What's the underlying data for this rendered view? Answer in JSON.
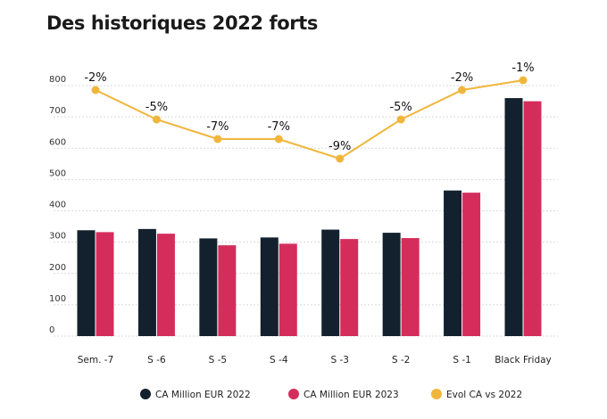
{
  "chart_data": {
    "type": "bar",
    "title": "Des historiques 2022 forts",
    "categories": [
      "Sem. -7",
      "S -6",
      "S -5",
      "S -4",
      "S -3",
      "S -2",
      "S -1",
      "Black Friday"
    ],
    "ylim": [
      0,
      800
    ],
    "yticks": [
      0,
      100,
      200,
      300,
      400,
      500,
      600,
      700,
      800
    ],
    "grid": true,
    "legend_position": "bottom",
    "series": [
      {
        "name": "CA Million EUR 2022",
        "kind": "bar",
        "color": "#13212e",
        "values": [
          338,
          342,
          312,
          315,
          340,
          330,
          465,
          760
        ]
      },
      {
        "name": "CA Million EUR 2023",
        "kind": "bar",
        "color": "#d42d5c",
        "values": [
          332,
          327,
          290,
          295,
          310,
          313,
          458,
          750
        ]
      }
    ],
    "line_series": {
      "name": "Evol CA vs 2022",
      "kind": "line",
      "color": "#f0b63c",
      "values": [
        -2,
        -5,
        -7,
        -7,
        -9,
        -5,
        -2,
        -1
      ],
      "labels": [
        "-2%",
        "-5%",
        "-7%",
        "-7%",
        "-9%",
        "-5%",
        "-2%",
        "-1%"
      ]
    }
  }
}
